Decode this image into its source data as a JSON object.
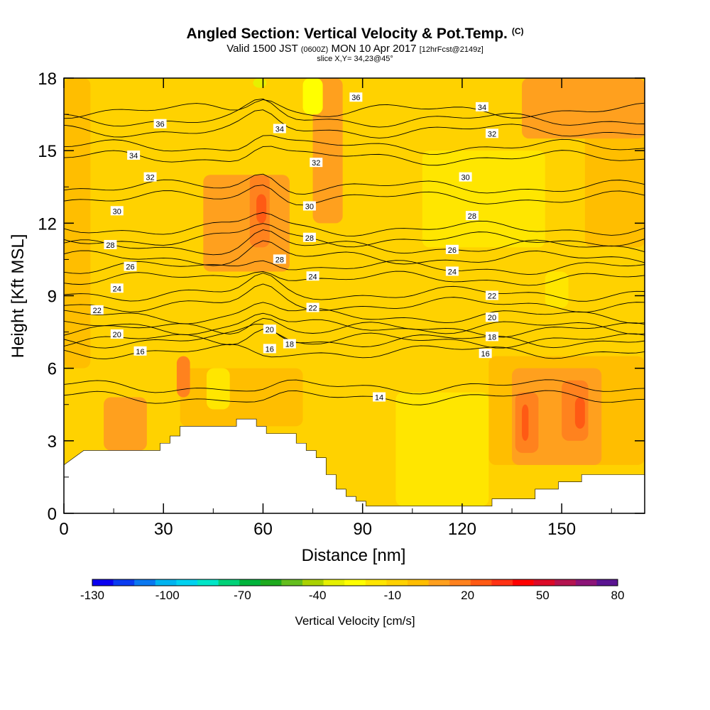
{
  "header": {
    "title": "Angled Section: Vertical Velocity & Pot.Temp.",
    "title_units": "(C)",
    "valid_prefix": "Valid 1500 JST",
    "valid_utc": "(0600Z)",
    "valid_date": "MON 10 Apr 2017",
    "forecast_tag": "[12hrFcst@2149z]",
    "slice": "slice X,Y= 34,23@45°"
  },
  "chart_data": {
    "type": "heatmap",
    "xlabel": "Distance [nm]",
    "ylabel": "Height [Kft MSL]",
    "xlim": [
      0,
      175
    ],
    "ylim": [
      0,
      18
    ],
    "x_ticks": [
      0,
      30,
      60,
      90,
      120,
      150
    ],
    "y_ticks": [
      0,
      3,
      6,
      9,
      12,
      15,
      18
    ],
    "colorbar": {
      "label": "Vertical Velocity [cm/s]",
      "min": -130,
      "max": 80,
      "step": 10,
      "tick_labels": [
        -130,
        -100,
        -70,
        -40,
        -10,
        20,
        50,
        80
      ],
      "colors": [
        "#0a00f0",
        "#0a3cf0",
        "#0a78f0",
        "#00b4f0",
        "#00d2f0",
        "#00e6c8",
        "#00d278",
        "#00b43c",
        "#1eaa1e",
        "#64be1e",
        "#aad200",
        "#e6f000",
        "#ffff00",
        "#ffe600",
        "#ffd200",
        "#ffbe00",
        "#ffa01e",
        "#ff821e",
        "#ff5a14",
        "#ff3214",
        "#ff0000",
        "#dc0a28",
        "#b41450",
        "#8c1478",
        "#5a1491"
      ]
    },
    "terrain": [
      [
        0,
        2
      ],
      [
        3,
        2.3
      ],
      [
        6,
        2.6
      ],
      [
        29,
        2.6
      ],
      [
        29,
        2.9
      ],
      [
        32,
        2.9
      ],
      [
        32,
        3.2
      ],
      [
        35,
        3.2
      ],
      [
        35,
        3.6
      ],
      [
        52,
        3.6
      ],
      [
        52,
        3.9
      ],
      [
        58,
        3.9
      ],
      [
        58,
        3.6
      ],
      [
        61,
        3.6
      ],
      [
        61,
        3.3
      ],
      [
        70,
        3.3
      ],
      [
        70,
        2.9
      ],
      [
        73,
        2.9
      ],
      [
        73,
        2.6
      ],
      [
        76,
        2.6
      ],
      [
        76,
        2.3
      ],
      [
        79,
        2.3
      ],
      [
        79,
        1.6
      ],
      [
        82,
        1.6
      ],
      [
        82,
        1.0
      ],
      [
        85,
        1.0
      ],
      [
        85,
        0.7
      ],
      [
        88,
        0.7
      ],
      [
        88,
        0.5
      ],
      [
        91,
        0.5
      ],
      [
        91,
        0.3
      ],
      [
        129,
        0.3
      ],
      [
        129,
        0.6
      ],
      [
        142,
        0.6
      ],
      [
        142,
        1.0
      ],
      [
        149,
        1.0
      ],
      [
        149,
        1.3
      ],
      [
        156,
        1.3
      ],
      [
        156,
        1.6
      ],
      [
        175,
        1.6
      ]
    ],
    "theta_contour_labels": [
      {
        "text": "36",
        "x": 29,
        "y": 16.1
      },
      {
        "text": "36",
        "x": 88,
        "y": 17.2
      },
      {
        "text": "34",
        "x": 21,
        "y": 14.8
      },
      {
        "text": "34",
        "x": 65,
        "y": 15.9
      },
      {
        "text": "34",
        "x": 126,
        "y": 16.8
      },
      {
        "text": "32",
        "x": 26,
        "y": 13.9
      },
      {
        "text": "32",
        "x": 76,
        "y": 14.5
      },
      {
        "text": "32",
        "x": 129,
        "y": 15.7
      },
      {
        "text": "30",
        "x": 16,
        "y": 12.5
      },
      {
        "text": "30",
        "x": 74,
        "y": 12.7
      },
      {
        "text": "30",
        "x": 121,
        "y": 13.9
      },
      {
        "text": "28",
        "x": 14,
        "y": 11.1
      },
      {
        "text": "28",
        "x": 74,
        "y": 11.4
      },
      {
        "text": "28",
        "x": 123,
        "y": 12.3
      },
      {
        "text": "28",
        "x": 65,
        "y": 10.5
      },
      {
        "text": "26",
        "x": 20,
        "y": 10.2
      },
      {
        "text": "26",
        "x": 117,
        "y": 10.9
      },
      {
        "text": "24",
        "x": 16,
        "y": 9.3
      },
      {
        "text": "24",
        "x": 75,
        "y": 9.8
      },
      {
        "text": "24",
        "x": 117,
        "y": 10.0
      },
      {
        "text": "22",
        "x": 10,
        "y": 8.4
      },
      {
        "text": "22",
        "x": 75,
        "y": 8.5
      },
      {
        "text": "22",
        "x": 129,
        "y": 9.0
      },
      {
        "text": "20",
        "x": 16,
        "y": 7.4
      },
      {
        "text": "20",
        "x": 62,
        "y": 7.6
      },
      {
        "text": "20",
        "x": 129,
        "y": 8.1
      },
      {
        "text": "18",
        "x": 68,
        "y": 7.0
      },
      {
        "text": "18",
        "x": 129,
        "y": 7.3
      },
      {
        "text": "16",
        "x": 23,
        "y": 6.7
      },
      {
        "text": "16",
        "x": 62,
        "y": 6.8
      },
      {
        "text": "16",
        "x": 127,
        "y": 6.6
      },
      {
        "text": "14",
        "x": 95,
        "y": 4.8
      }
    ],
    "velocity_regions": [
      {
        "color": "#ffd200",
        "x1": 0,
        "x2": 175,
        "y1": 0,
        "y2": 18
      },
      {
        "color": "#ffbe00",
        "x1": 0,
        "x2": 8,
        "y1": 6,
        "y2": 18
      },
      {
        "color": "#ffbe00",
        "x1": 35,
        "x2": 72,
        "y1": 3.6,
        "y2": 6
      },
      {
        "color": "#ffbe00",
        "x1": 128,
        "x2": 175,
        "y1": 2,
        "y2": 6.5
      },
      {
        "color": "#ffbe00",
        "x1": 157,
        "x2": 175,
        "y1": 11,
        "y2": 18
      },
      {
        "color": "#ffa01e",
        "x1": 12,
        "x2": 25,
        "y1": 2.6,
        "y2": 4.8
      },
      {
        "color": "#ffa01e",
        "x1": 135,
        "x2": 162,
        "y1": 2,
        "y2": 6
      },
      {
        "color": "#ffa01e",
        "x1": 42,
        "x2": 68,
        "y1": 10,
        "y2": 14
      },
      {
        "color": "#ffa01e",
        "x1": 75,
        "x2": 84,
        "y1": 12,
        "y2": 18
      },
      {
        "color": "#ffa01e",
        "x1": 138,
        "x2": 175,
        "y1": 15.5,
        "y2": 18
      },
      {
        "color": "#ffe600",
        "x1": 100,
        "x2": 128,
        "y1": 0.3,
        "y2": 5
      },
      {
        "color": "#ffe600",
        "x1": 108,
        "x2": 145,
        "y1": 11,
        "y2": 15
      },
      {
        "color": "#ffe600",
        "x1": 43,
        "x2": 50,
        "y1": 4.3,
        "y2": 6
      },
      {
        "color": "#ffe600",
        "x1": 145,
        "x2": 152,
        "y1": 8.5,
        "y2": 10
      },
      {
        "color": "#ff821e",
        "x1": 34,
        "x2": 38,
        "y1": 4.8,
        "y2": 6.5
      },
      {
        "color": "#ff821e",
        "x1": 56,
        "x2": 62,
        "y1": 11,
        "y2": 14
      },
      {
        "color": "#ff821e",
        "x1": 136,
        "x2": 143,
        "y1": 2.5,
        "y2": 5
      },
      {
        "color": "#ff821e",
        "x1": 150,
        "x2": 158,
        "y1": 3,
        "y2": 5.5
      },
      {
        "color": "#ff5a14",
        "x1": 154,
        "x2": 157,
        "y1": 3.5,
        "y2": 4.8
      },
      {
        "color": "#ff5a14",
        "x1": 138,
        "x2": 140,
        "y1": 3,
        "y2": 4.5
      },
      {
        "color": "#ff5a14",
        "x1": 58,
        "x2": 61,
        "y1": 12,
        "y2": 13.2
      },
      {
        "color": "#ffff00",
        "x1": 72,
        "x2": 78,
        "y1": 16.5,
        "y2": 18
      },
      {
        "color": "#e6f000",
        "x1": 57,
        "x2": 61,
        "y1": 17.6,
        "y2": 18
      }
    ],
    "grid": false
  }
}
